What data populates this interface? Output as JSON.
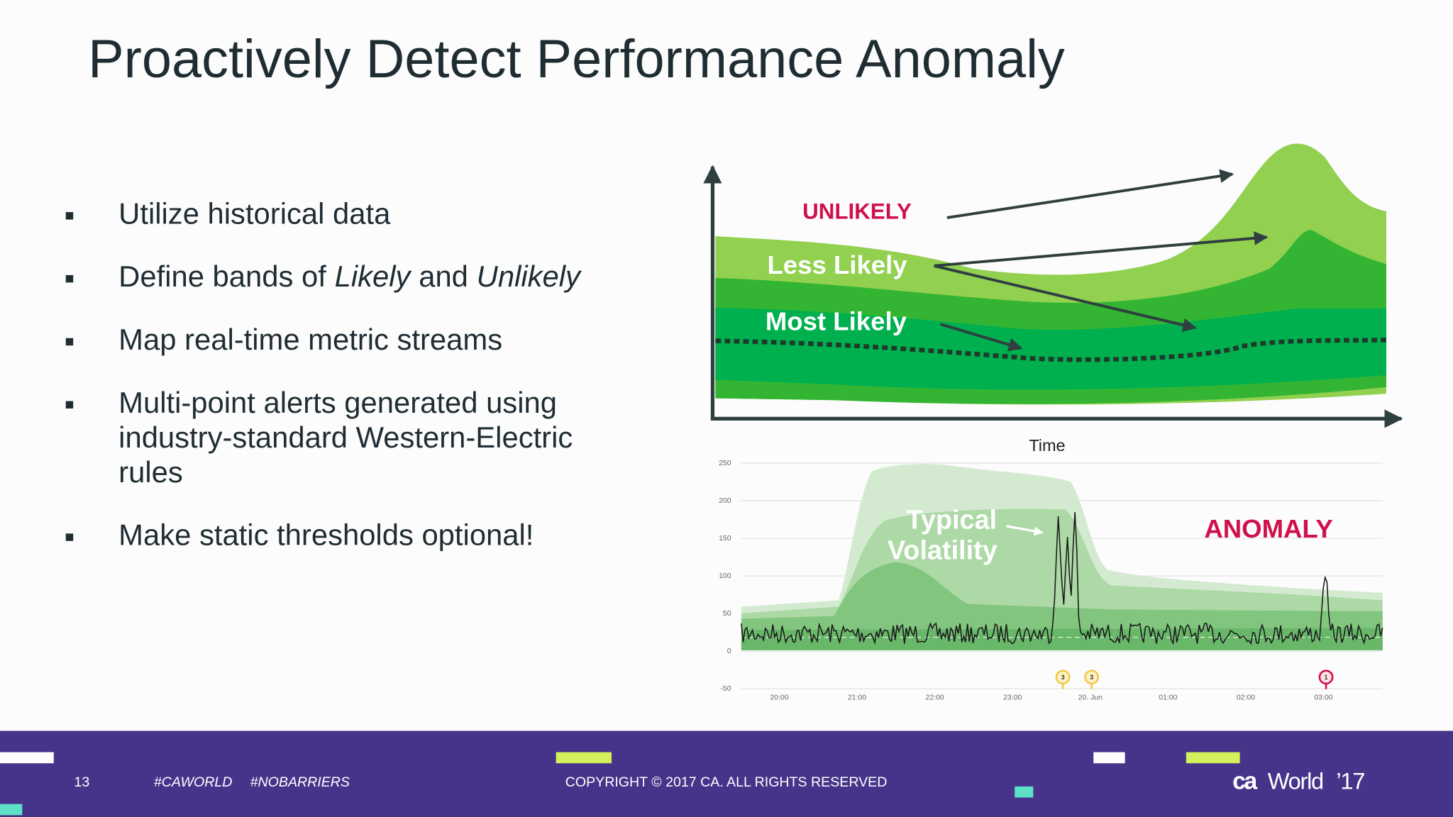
{
  "title": "Proactively Detect Performance Anomaly",
  "bullets": [
    {
      "text": "Utilize historical data"
    },
    {
      "parts": [
        {
          "text": "Define bands of"
        },
        {
          "text": "Likely",
          "italic": true
        },
        {
          "text": "and"
        },
        {
          "text": "Unlikely",
          "italic": true
        }
      ]
    },
    {
      "text": "Map real-time metric streams"
    },
    {
      "lines": [
        "Multi-point alerts generated using",
        "industry-standard Western-Electric",
        "rules"
      ]
    },
    {
      "text": "Make static thresholds optional!"
    }
  ],
  "diagram": {
    "unlikely": "UNLIKELY",
    "less_likely": "Less Likely",
    "most_likely": "Most Likely",
    "x_axis_label": "Time"
  },
  "chart": {
    "yticks": [
      "250",
      "200",
      "150",
      "100",
      "50",
      "0",
      "-50"
    ],
    "xticks": [
      "20:00",
      "21:00",
      "22:00",
      "23:00",
      "20. Jun",
      "01:00",
      "02:00",
      "03:00"
    ],
    "annotation_lines": [
      "Typical",
      "Volatility"
    ],
    "anomaly": "ANOMALY",
    "markers": [
      "3",
      "3",
      "1"
    ]
  },
  "footer": {
    "page": "13",
    "tags": [
      "#CAWORLD",
      "#NOBARRIERS"
    ],
    "copyright": "COPYRIGHT © 2017 CA. ALL RIGHTS RESERVED",
    "logo": [
      "ca",
      "World",
      "’17"
    ]
  }
}
